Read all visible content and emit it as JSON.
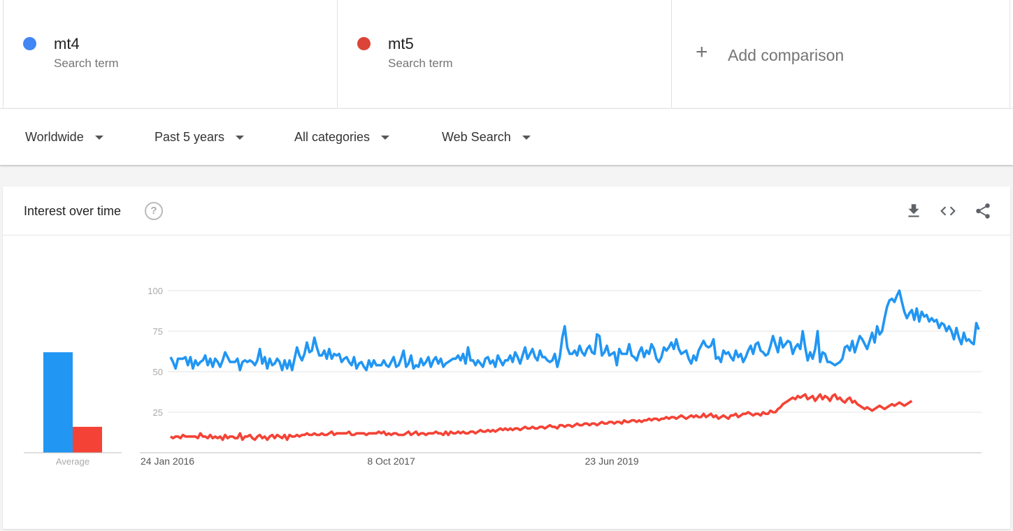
{
  "terms": [
    {
      "name": "mt4",
      "sub": "Search term",
      "color": "#4285f4"
    },
    {
      "name": "mt5",
      "sub": "Search term",
      "color": "#db4437"
    }
  ],
  "add_comparison": {
    "icon": "plus-icon",
    "label": "Add comparison"
  },
  "filters": [
    {
      "label": "Worldwide"
    },
    {
      "label": "Past 5 years"
    },
    {
      "label": "All categories"
    },
    {
      "label": "Web Search"
    }
  ],
  "card": {
    "title": "Interest over time",
    "help_icon": "?",
    "tools": [
      "download-icon",
      "embed-icon",
      "share-icon"
    ]
  },
  "chart_data": {
    "type": "line",
    "x_start": "24 Jan 2016",
    "x_end": "16 Jan 2021",
    "x_tick_labels": [
      "24 Jan 2016",
      "8 Oct 2017",
      "23 Jun 2019"
    ],
    "ylim": [
      0,
      100
    ],
    "y_ticks": [
      25,
      50,
      75,
      100
    ],
    "grid": true,
    "series": [
      {
        "name": "mt4",
        "color": "#2196f3",
        "average": 62,
        "values": [
          59,
          56,
          52,
          58,
          58,
          58,
          59,
          54,
          59,
          52,
          57,
          54,
          56,
          57,
          60,
          54,
          58,
          53,
          58,
          56,
          53,
          57,
          62,
          59,
          56,
          56,
          56,
          58,
          51,
          56,
          57,
          56,
          57,
          56,
          54,
          57,
          64,
          55,
          59,
          52,
          58,
          54,
          55,
          58,
          56,
          51,
          57,
          52,
          57,
          51,
          58,
          65,
          60,
          57,
          61,
          68,
          62,
          63,
          71,
          65,
          60,
          60,
          63,
          58,
          64,
          58,
          61,
          60,
          61,
          56,
          58,
          59,
          56,
          54,
          59,
          52,
          55,
          56,
          53,
          51,
          57,
          53,
          57,
          54,
          54,
          54,
          57,
          54,
          53,
          56,
          59,
          53,
          54,
          58,
          63,
          53,
          55,
          60,
          52,
          54,
          53,
          58,
          54,
          56,
          59,
          53,
          57,
          59,
          55,
          58,
          53,
          55,
          56,
          57,
          58,
          58,
          60,
          57,
          61,
          55,
          65,
          57,
          57,
          54,
          57,
          55,
          53,
          58,
          59,
          55,
          57,
          53,
          60,
          57,
          54,
          57,
          57,
          60,
          56,
          62,
          59,
          55,
          60,
          65,
          58,
          61,
          64,
          59,
          57,
          63,
          59,
          59,
          57,
          56,
          57,
          61,
          53,
          59,
          71,
          78,
          65,
          61,
          61,
          63,
          60,
          66,
          62,
          60,
          64,
          66,
          62,
          61,
          73,
          72,
          60,
          62,
          66,
          60,
          61,
          62,
          54,
          64,
          61,
          61,
          61,
          67,
          60,
          59,
          57,
          62,
          65,
          59,
          63,
          61,
          67,
          64,
          58,
          56,
          59,
          65,
          63,
          65,
          68,
          64,
          70,
          64,
          61,
          62,
          63,
          58,
          55,
          60,
          57,
          63,
          66,
          69,
          66,
          65,
          66,
          70,
          58,
          59,
          56,
          63,
          61,
          62,
          59,
          57,
          63,
          59,
          61,
          56,
          59,
          63,
          66,
          61,
          67,
          68,
          63,
          62,
          60,
          61,
          66,
          72,
          67,
          62,
          71,
          65,
          67,
          69,
          68,
          61,
          65,
          67,
          64,
          75,
          65,
          57,
          62,
          58,
          64,
          75,
          56,
          62,
          61,
          56,
          56,
          55,
          54,
          55,
          56,
          58,
          65,
          66,
          63,
          69,
          62,
          67,
          72,
          70,
          67,
          64,
          69,
          74,
          68,
          78,
          73,
          75,
          83,
          90,
          94,
          95,
          93,
          97,
          100,
          93,
          87,
          83,
          86,
          88,
          82,
          89,
          81,
          87,
          84,
          85,
          81,
          83,
          81,
          82,
          77,
          80,
          79,
          75,
          78,
          75,
          70,
          77,
          71,
          67,
          74,
          69,
          70,
          68,
          67,
          80,
          76
        ]
      },
      {
        "name": "mt5",
        "color": "#f44336",
        "average": 16,
        "values": [
          10,
          9,
          10,
          10,
          9,
          11,
          10,
          10,
          10,
          10,
          10,
          9,
          12,
          10,
          10,
          9,
          11,
          9,
          10,
          9,
          10,
          8,
          11,
          9,
          10,
          10,
          9,
          9,
          12,
          8,
          10,
          10,
          11,
          9,
          8,
          10,
          11,
          9,
          10,
          8,
          10,
          11,
          9,
          11,
          10,
          9,
          11,
          8,
          11,
          10,
          10,
          11,
          10,
          11,
          11,
          12,
          11,
          11,
          12,
          11,
          11,
          12,
          11,
          11,
          12,
          13,
          11,
          12,
          12,
          12,
          12,
          12,
          13,
          11,
          11,
          12,
          12,
          12,
          12,
          11,
          12,
          12,
          12,
          12,
          13,
          12,
          13,
          11,
          12,
          11,
          12,
          12,
          11,
          11,
          11,
          12,
          13,
          11,
          12,
          13,
          11,
          12,
          12,
          11,
          12,
          12,
          12,
          13,
          12,
          12,
          11,
          13,
          11,
          13,
          12,
          12,
          13,
          12,
          13,
          12,
          12,
          13,
          13,
          12,
          13,
          14,
          13,
          13,
          14,
          13,
          14,
          13,
          14,
          15,
          14,
          15,
          14,
          15,
          14,
          15,
          15,
          14,
          15,
          16,
          15,
          15,
          16,
          15,
          15,
          16,
          16,
          15,
          16,
          17,
          16,
          16,
          15,
          17,
          17,
          16,
          17,
          17,
          16,
          17,
          18,
          17,
          17,
          18,
          18,
          17,
          18,
          18,
          17,
          18,
          19,
          18,
          18,
          19,
          19,
          18,
          19,
          19,
          18,
          20,
          19,
          19,
          20,
          20,
          19,
          20,
          19,
          20,
          20,
          21,
          20,
          21,
          21,
          20,
          21,
          21,
          22,
          21,
          22,
          22,
          21,
          22,
          23,
          22,
          21,
          22,
          23,
          22,
          23,
          22,
          22,
          24,
          22,
          23,
          24,
          22,
          23,
          21,
          22,
          23,
          22,
          21,
          23,
          23,
          24,
          22,
          23,
          24,
          24,
          25,
          24,
          23,
          24,
          24,
          23,
          25,
          24,
          24,
          26,
          25,
          25,
          27,
          28,
          30,
          31,
          32,
          33,
          34,
          33,
          35,
          34,
          35,
          36,
          33,
          34,
          35,
          32,
          34,
          36,
          33,
          35,
          34,
          32,
          35,
          36,
          33,
          34,
          32,
          31,
          33,
          34,
          31,
          32,
          30,
          29,
          28,
          27,
          28,
          27,
          26,
          27,
          28,
          29,
          28,
          27,
          28,
          29,
          30,
          29,
          30,
          31,
          30,
          29,
          30,
          31,
          32
        ]
      }
    ]
  }
}
